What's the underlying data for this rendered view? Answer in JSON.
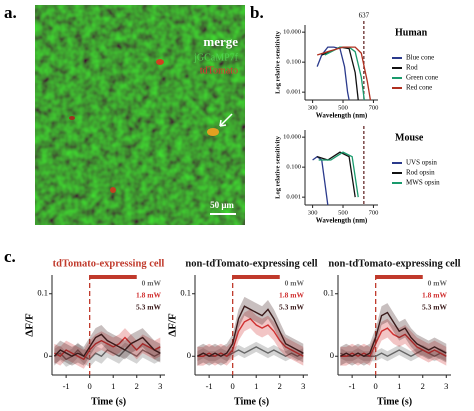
{
  "panel_labels": [
    "a.",
    "b.",
    "c."
  ],
  "image_panel": {
    "labels": [
      "merge",
      "jGCaMP7f",
      "tdTomato"
    ],
    "scale_bar": "50 μm"
  },
  "chart_data": [
    {
      "type": "line",
      "yscale": "log",
      "legend_title": "Human",
      "xlabel": "Wavelength (nm)",
      "ylabel": "Log relative sensitivity",
      "xlim": [
        250,
        730
      ],
      "xticks": [
        300,
        500,
        700
      ],
      "ylim": [
        0.0003,
        30
      ],
      "yticks": [
        {
          "value": 10,
          "label": "10.000"
        },
        {
          "value": 0.1,
          "label": "0.100"
        },
        {
          "value": 0.001,
          "label": "0.001"
        }
      ],
      "marker": {
        "x": 637,
        "label": "637"
      },
      "series": [
        {
          "name": "Blue cone",
          "color": "#2b3a8c",
          "x": [
            330,
            360,
            400,
            440,
            480,
            510,
            530,
            540
          ],
          "values": [
            0.05,
            0.3,
            1,
            1,
            0.8,
            0.05,
            0.001,
            0.0003
          ]
        },
        {
          "name": "Rod",
          "color": "#111111",
          "x": [
            360,
            420,
            480,
            540,
            580,
            600
          ],
          "values": [
            0.3,
            0.5,
            1,
            0.8,
            0.02,
            0.0003
          ]
        },
        {
          "name": "Green cone",
          "color": "#1a9a6c",
          "x": [
            380,
            480,
            540,
            580,
            620,
            640
          ],
          "values": [
            0.3,
            1,
            1,
            0.5,
            0.01,
            0.0003
          ]
        },
        {
          "name": "Red cone",
          "color": "#b03020",
          "x": [
            330,
            400,
            500,
            580,
            620,
            660,
            680
          ],
          "values": [
            0.3,
            0.5,
            1,
            1,
            0.4,
            0.005,
            0.0003
          ]
        }
      ]
    },
    {
      "type": "line",
      "yscale": "log",
      "legend_title": "Mouse",
      "xlabel": "Wavelength (nm)",
      "ylabel": "Log relative sensitivity",
      "xlim": [
        250,
        730
      ],
      "xticks": [
        300,
        500,
        700
      ],
      "ylim": [
        0.0003,
        30
      ],
      "yticks": [
        {
          "value": 10,
          "label": "10.000"
        },
        {
          "value": 0.1,
          "label": "0.100"
        },
        {
          "value": 0.001,
          "label": "0.001"
        }
      ],
      "marker": {
        "x": 637
      },
      "series": [
        {
          "name": "UVS opsin",
          "color": "#2b3a8c",
          "x": [
            300,
            330,
            360,
            380,
            400
          ],
          "values": [
            0.3,
            0.5,
            0.3,
            0.01,
            0.0003
          ]
        },
        {
          "name": "Rod opsin",
          "color": "#111111",
          "x": [
            330,
            400,
            480,
            540,
            580
          ],
          "values": [
            0.5,
            0.3,
            1,
            0.5,
            0.001
          ]
        },
        {
          "name": "MWS opsin",
          "color": "#1a9a6c",
          "x": [
            340,
            420,
            500,
            560,
            600
          ],
          "values": [
            0.3,
            0.3,
            1,
            0.5,
            0.001
          ]
        }
      ]
    },
    {
      "type": "line",
      "title": "tdTomato-expressing cell",
      "title_color": "#c0392b",
      "xlabel": "Time (s)",
      "ylabel": "ΔF/F",
      "xlim": [
        -1.6,
        3.2
      ],
      "xticks": [
        -1,
        0,
        1,
        2,
        3
      ],
      "ylim": [
        -0.03,
        0.13
      ],
      "yticks": [
        0,
        0.1
      ],
      "stimulus": [
        0,
        2
      ],
      "x": [
        -1.5,
        -1.25,
        -1,
        -0.75,
        -0.5,
        -0.25,
        0,
        0.25,
        0.5,
        0.75,
        1,
        1.25,
        1.5,
        1.75,
        2,
        2.25,
        2.5,
        2.75,
        3
      ],
      "series": [
        {
          "name": "0 mW",
          "color": "#666666",
          "error": 0.012,
          "values": [
            0,
            0.005,
            -0.005,
            0,
            0.01,
            0,
            -0.005,
            0.005,
            0,
            0.01,
            0.005,
            0,
            0.01,
            0.005,
            0,
            0.01,
            0.005,
            0,
            0.005
          ]
        },
        {
          "name": "1.8 mW",
          "color": "#d03030",
          "error": 0.015,
          "values": [
            0.005,
            0,
            0.01,
            0.005,
            0,
            -0.005,
            0.01,
            0.02,
            0.025,
            0.02,
            0.015,
            0.02,
            0.03,
            0.02,
            0.01,
            0.02,
            0.015,
            0.01,
            0.015
          ]
        },
        {
          "name": "5.3 mW",
          "color": "#3a1a1a",
          "error": 0.015,
          "values": [
            0,
            0.01,
            0.005,
            0,
            0.005,
            0,
            0.015,
            0.03,
            0.035,
            0.025,
            0.02,
            0.015,
            0.01,
            0.02,
            0.025,
            0.03,
            0.02,
            0.01,
            0.005
          ]
        }
      ]
    },
    {
      "type": "line",
      "title": "non-tdTomato-expressing cell",
      "title_color": "#111111",
      "xlabel": "Time (s)",
      "ylabel": "ΔF/F",
      "xlim": [
        -1.6,
        3.2
      ],
      "xticks": [
        -1,
        0,
        1,
        2,
        3
      ],
      "ylim": [
        -0.03,
        0.13
      ],
      "yticks": [
        0,
        0.1
      ],
      "stimulus": [
        0,
        2
      ],
      "x": [
        -1.5,
        -1.25,
        -1,
        -0.75,
        -0.5,
        -0.25,
        0,
        0.25,
        0.5,
        0.75,
        1,
        1.25,
        1.5,
        1.75,
        2,
        2.25,
        2.5,
        2.75,
        3
      ],
      "series": [
        {
          "name": "0 mW",
          "color": "#666666",
          "error": 0.008,
          "values": [
            0,
            0.005,
            0,
            0,
            0.005,
            0,
            0.005,
            0.01,
            0.005,
            0.01,
            0.015,
            0.01,
            0.005,
            0.01,
            0.005,
            0,
            0.005,
            0,
            0.005
          ]
        },
        {
          "name": "1.8 mW",
          "color": "#d03030",
          "error": 0.015,
          "values": [
            0,
            0,
            0.005,
            0,
            0.005,
            0,
            0.01,
            0.04,
            0.055,
            0.06,
            0.05,
            0.045,
            0.05,
            0.04,
            0.025,
            0.015,
            0.01,
            0.005,
            0
          ]
        },
        {
          "name": "5.3 mW",
          "color": "#3a1a1a",
          "error": 0.015,
          "values": [
            0,
            0.005,
            0,
            0.005,
            0,
            0.005,
            0.02,
            0.06,
            0.08,
            0.075,
            0.07,
            0.065,
            0.075,
            0.06,
            0.04,
            0.02,
            0.015,
            0.01,
            0.005
          ]
        }
      ]
    },
    {
      "type": "line",
      "title": "non-tdTomato-expressing cell",
      "title_color": "#111111",
      "xlabel": "Time (s)",
      "xlim": [
        -1.6,
        3.2
      ],
      "xticks": [
        -1,
        0,
        1,
        2,
        3
      ],
      "ylim": [
        -0.03,
        0.13
      ],
      "yticks": [
        0,
        0.1
      ],
      "stimulus": [
        0,
        2
      ],
      "x": [
        -1.5,
        -1.25,
        -1,
        -0.75,
        -0.5,
        -0.25,
        0,
        0.25,
        0.5,
        0.75,
        1,
        1.25,
        1.5,
        1.75,
        2,
        2.25,
        2.5,
        2.75,
        3
      ],
      "series": [
        {
          "name": "0 mW",
          "color": "#666666",
          "error": 0.008,
          "values": [
            0.005,
            0,
            0,
            0.005,
            0,
            0,
            0,
            0.005,
            0,
            0.005,
            0.01,
            0.005,
            0,
            0.005,
            0.01,
            0.005,
            0,
            0.005,
            0
          ]
        },
        {
          "name": "1.8 mW",
          "color": "#d03030",
          "error": 0.015,
          "values": [
            0,
            0,
            0.005,
            0,
            0.005,
            0,
            0.02,
            0.04,
            0.045,
            0.035,
            0.03,
            0.035,
            0.025,
            0.015,
            0.01,
            0.005,
            0.01,
            0.005,
            0
          ]
        },
        {
          "name": "5.3 mW",
          "color": "#3a1a1a",
          "error": 0.015,
          "values": [
            0,
            0.005,
            0,
            0.005,
            0,
            0.005,
            0.03,
            0.065,
            0.07,
            0.055,
            0.04,
            0.045,
            0.03,
            0.02,
            0.015,
            0.01,
            0.015,
            0.01,
            0.005
          ]
        }
      ]
    }
  ]
}
